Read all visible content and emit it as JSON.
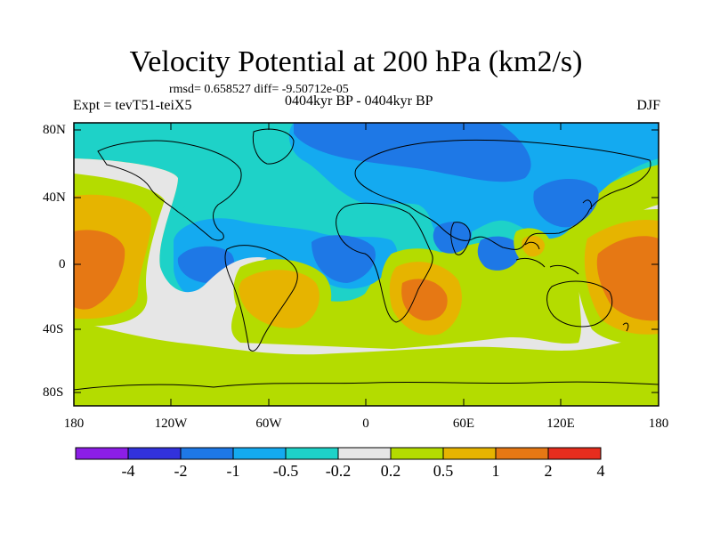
{
  "title": "Velocity Potential at 200 hPa (km2/s)",
  "stats": "rmsd= 0.658527 diff= -9.50712e-05",
  "experiment": "Expt = tevT51-teiX5",
  "period": "0404kyr BP - 0404kyr BP",
  "season": "DJF",
  "lat_labels": [
    "80N",
    "40N",
    "0",
    "40S",
    "80S"
  ],
  "lon_labels": [
    "180",
    "120W",
    "60W",
    "0",
    "60E",
    "120E",
    "180"
  ],
  "colorbar": {
    "colors": [
      "#8c1ee6",
      "#3232dc",
      "#1e78e6",
      "#14aaf0",
      "#1ed2c8",
      "#e6e6e6",
      "#b4dc00",
      "#e6b400",
      "#e67814",
      "#e62d1e"
    ],
    "labels": [
      "-4",
      "-2",
      "-1",
      "-0.5",
      "-0.2",
      "0.2",
      "0.5",
      "1",
      "2",
      "4"
    ]
  },
  "map_colors": {
    "green": "#b4dc00",
    "white": "#e6e6e6",
    "cyan": "#1ed2c8",
    "lightblue": "#14aaf0",
    "blue": "#1e78e6",
    "orange": "#e6b400",
    "darkorange": "#e67814"
  }
}
